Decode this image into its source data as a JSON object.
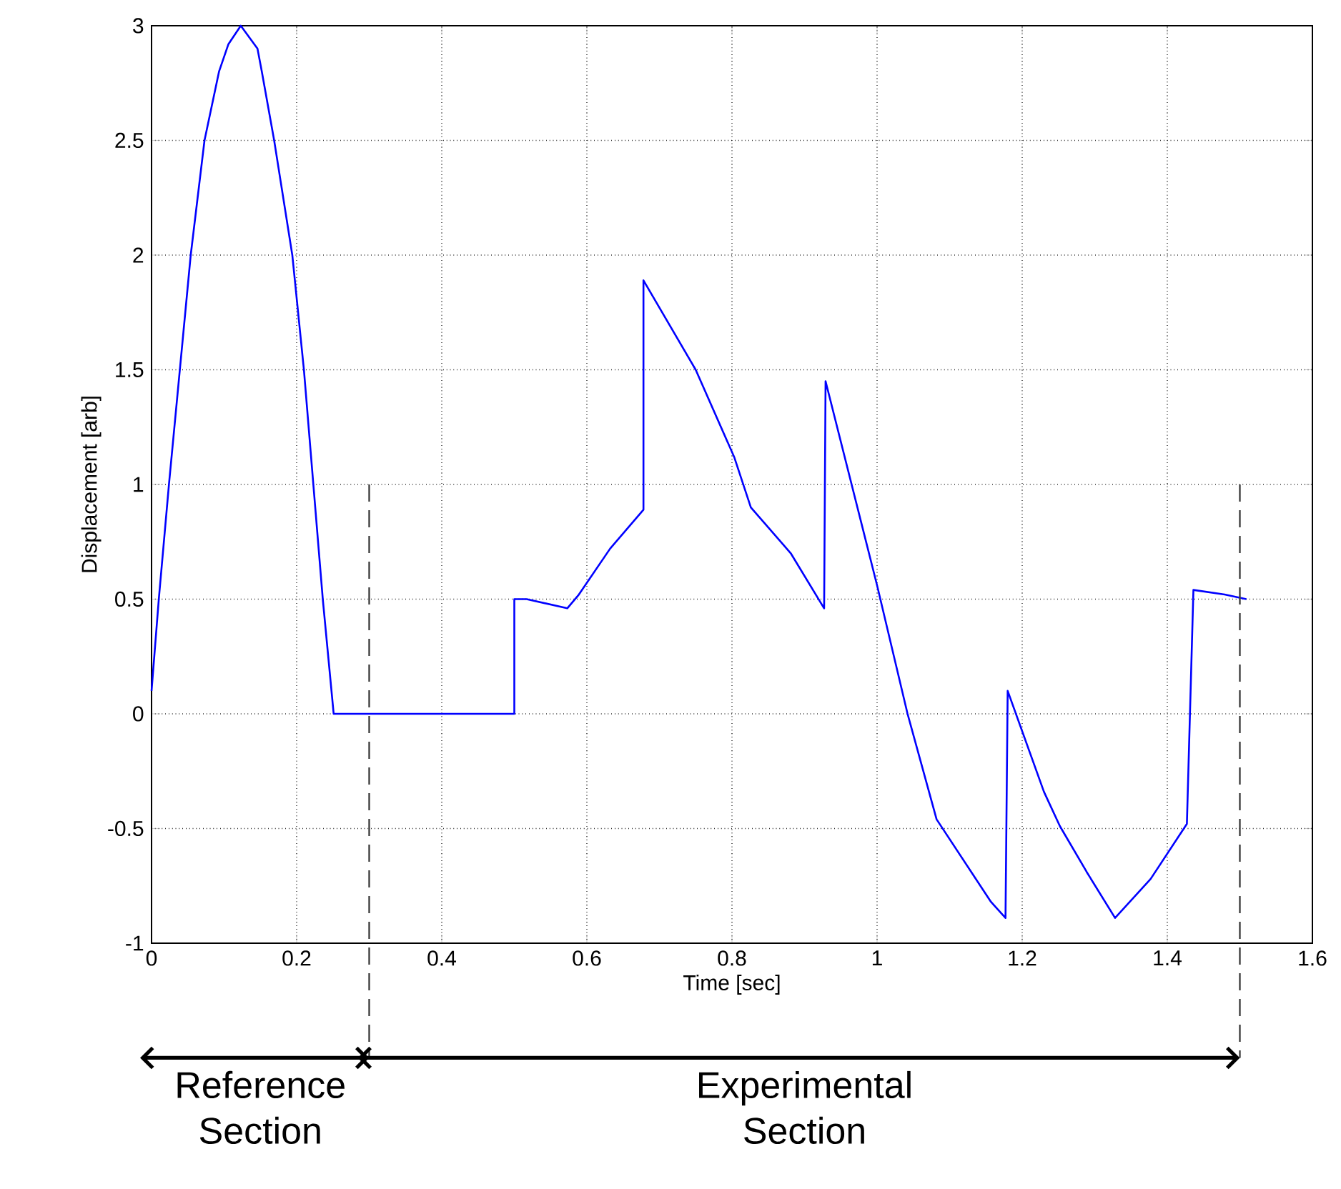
{
  "chart_data": {
    "type": "line",
    "xlabel": "Time [sec]",
    "ylabel": "Displacement [arb]",
    "xlim": [
      0,
      1.6
    ],
    "ylim": [
      -1,
      3
    ],
    "xticks": [
      0,
      0.2,
      0.4,
      0.6,
      0.8,
      1,
      1.2,
      1.4,
      1.6
    ],
    "yticks": [
      -1,
      -0.5,
      0,
      0.5,
      1,
      1.5,
      2,
      2.5,
      3
    ],
    "grid": true,
    "series": [
      {
        "color": "#0000ff",
        "x": [
          0,
          0.01,
          0.024,
          0.039,
          0.054,
          0.073,
          0.093,
          0.106,
          0.123,
          0.146,
          0.152,
          0.169,
          0.194,
          0.21,
          0.223,
          0.236,
          0.251,
          0.5,
          0.5,
          0.517,
          0.573,
          0.589,
          0.632,
          0.678,
          0.678,
          0.75,
          0.803,
          0.826,
          0.881,
          0.927,
          0.929,
          1.0,
          1.042,
          1.082,
          1.157,
          1.177,
          1.18,
          1.23,
          1.252,
          1.289,
          1.328,
          1.377,
          1.427,
          1.436,
          1.479,
          1.509
        ],
        "values": [
          0.1,
          0.5,
          1,
          1.5,
          2,
          2.5,
          2.8,
          2.92,
          3,
          2.9,
          2.8,
          2.5,
          2,
          1.5,
          1,
          0.5,
          0,
          0,
          0.5,
          0.5,
          0.46,
          0.52,
          0.72,
          0.89,
          1.89,
          1.5,
          1.12,
          0.9,
          0.7,
          0.46,
          1.45,
          0.56,
          0,
          -0.46,
          -0.82,
          -0.89,
          0.1,
          -0.34,
          -0.49,
          -0.69,
          -0.89,
          -0.72,
          -0.48,
          0.54,
          0.52,
          0.5
        ]
      }
    ],
    "ref_lines": [
      {
        "axis": "x",
        "value": 0.3,
        "line_style": "dashed",
        "color": "#404040"
      },
      {
        "axis": "x",
        "value": 1.5,
        "line_style": "dashed",
        "color": "#404040"
      }
    ],
    "annotations": [
      "Reference Section",
      "Experimental Section"
    ]
  }
}
